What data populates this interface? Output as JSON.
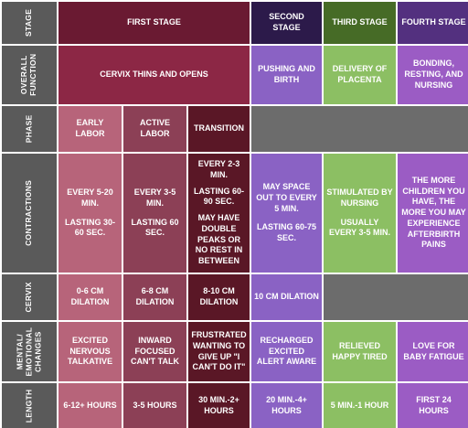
{
  "rows": {
    "stage": "STAGE",
    "overall_function": "OVERALL FUNCTION",
    "phase": "PHASE",
    "contractions": "CONTRACTIONS",
    "cervix": "CERVIX",
    "mental": "MENTAL/ EMOTIONAL CHANGES",
    "length": "LENGTH"
  },
  "stages": {
    "first": "FIRST STAGE",
    "second": "SECOND STAGE",
    "third": "THIRD STAGE",
    "fourth": "FOURTH STAGE"
  },
  "overall_function": {
    "first": "CERVIX THINS AND OPENS",
    "second": "PUSHING AND BIRTH",
    "third": "DELIVERY OF PLACENTA",
    "fourth": "BONDING, RESTING, AND NURSING"
  },
  "phase": {
    "early": "EARLY LABOR",
    "active": "ACTIVE LABOR",
    "transition": "TRANSITION"
  },
  "contractions": {
    "early": [
      "EVERY 5-20 MIN.",
      "LASTING 30-60 SEC."
    ],
    "active": [
      "EVERY 3-5 MIN.",
      "LASTING 60 SEC."
    ],
    "transition": [
      "EVERY 2-3 MIN.",
      "LASTING 60-90 SEC.",
      "MAY HAVE DOUBLE PEAKS OR NO REST IN BETWEEN"
    ],
    "second": [
      "MAY SPACE OUT TO EVERY 5 MIN.",
      "LASTING 60-75 SEC."
    ],
    "third": [
      "STIMULATED BY NURSING",
      "USUALLY EVERY 3-5 MIN."
    ],
    "fourth": [
      "THE MORE CHILDREN YOU HAVE, THE MORE YOU MAY EXPERIENCE AFTERBIRTH PAINS"
    ]
  },
  "cervix": {
    "early": "0-6 CM DILATION",
    "active": "6-8 CM DILATION",
    "transition": "8-10 CM DILATION",
    "second": "10 CM DILATION"
  },
  "mental": {
    "early": "EXCITED NERVOUS TALKATIVE",
    "active": "INWARD FOCUSED CAN'T TALK",
    "transition": "FRUSTRATED WANTING TO GIVE UP \"I CAN'T DO IT\"",
    "second": "RECHARGED EXCITED ALERT AWARE",
    "third": "RELIEVED HAPPY TIRED",
    "fourth": "LOVE FOR BABY FATIGUE"
  },
  "length": {
    "early": "6-12+ HOURS",
    "active": "3-5 HOURS",
    "transition": "30 MIN.-2+ HOURS",
    "second": "20 MIN.-4+ HOURS",
    "third": "5 MIN.-1 HOUR",
    "fourth": "FIRST 24 HOURS"
  },
  "colors": {
    "header_gray": "#5a5a5a",
    "first_stage": "#6a1a32",
    "second_stage": "#2c1a4a",
    "third_stage": "#466b26",
    "fourth_stage": "#53307f"
  }
}
